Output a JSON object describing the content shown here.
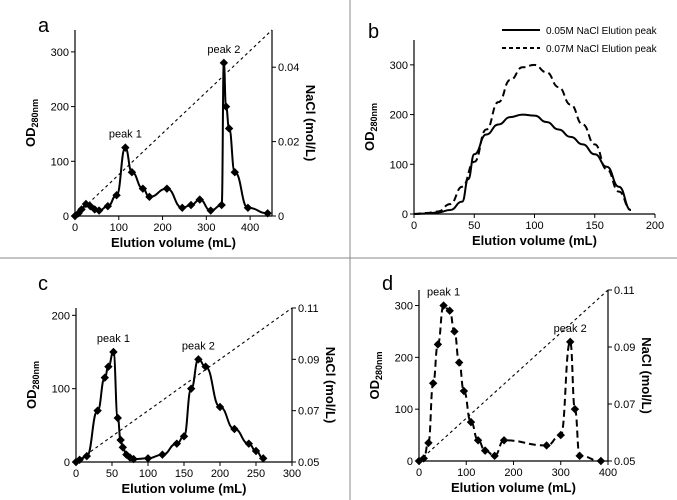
{
  "chart_data": [
    {
      "panel": "a",
      "type": "line",
      "xlabel": "Elution volume (mL)",
      "ylabel": {
        "main": "OD",
        "sub": "280nm"
      },
      "y2label": "NaCl (mol/L)",
      "xlim": [
        0,
        450
      ],
      "ylim": [
        0,
        340
      ],
      "y2lim": [
        0,
        0.05
      ],
      "xticks": [
        "0",
        "100",
        "200",
        "300",
        "400"
      ],
      "yticks": [
        "0",
        "100",
        "200",
        "300"
      ],
      "y2ticks": [
        "0",
        "0.02",
        "0.04"
      ],
      "series": [
        {
          "style": "solid-markers",
          "x": [
            0,
            8,
            15,
            25,
            35,
            45,
            55,
            75,
            95,
            115,
            130,
            155,
            170,
            210,
            245,
            265,
            285,
            310,
            335,
            340,
            345,
            352,
            365,
            395,
            440
          ],
          "y": [
            0,
            5,
            12,
            22,
            18,
            12,
            10,
            18,
            38,
            125,
            80,
            50,
            35,
            50,
            15,
            20,
            30,
            10,
            20,
            280,
            200,
            160,
            80,
            15,
            5
          ]
        },
        {
          "style": "dashed",
          "axis": "y2",
          "x": [
            0,
            450
          ],
          "y": [
            0,
            0.05
          ]
        }
      ],
      "annotations": [
        {
          "text": "peak 1",
          "x": 115,
          "y": 125
        },
        {
          "text": "peak 2",
          "x": 340,
          "y": 280
        }
      ]
    },
    {
      "panel": "b",
      "type": "line",
      "xlabel": "Elution volume (mL)",
      "ylabel": {
        "main": "OD",
        "sub": "280nm"
      },
      "xlim": [
        0,
        200
      ],
      "ylim": [
        0,
        350
      ],
      "xticks": [
        "0",
        "50",
        "100",
        "150",
        "200"
      ],
      "yticks": [
        "0",
        "100",
        "200",
        "300"
      ],
      "series": [
        {
          "name": "0.05M NaCl Elution peak",
          "style": "solid",
          "x": [
            0,
            10,
            20,
            30,
            40,
            45,
            50,
            60,
            70,
            80,
            90,
            100,
            110,
            120,
            130,
            140,
            150,
            160,
            170,
            180
          ],
          "y": [
            0,
            1,
            3,
            8,
            25,
            70,
            120,
            160,
            180,
            195,
            200,
            198,
            185,
            170,
            155,
            140,
            120,
            95,
            55,
            8
          ]
        },
        {
          "name": "0.07M NaCl Elution peak",
          "style": "dashed",
          "x": [
            0,
            10,
            20,
            30,
            40,
            50,
            60,
            70,
            80,
            90,
            100,
            110,
            120,
            130,
            140,
            150,
            160,
            170,
            180
          ],
          "y": [
            0,
            2,
            5,
            20,
            55,
            105,
            170,
            225,
            270,
            295,
            300,
            285,
            255,
            220,
            180,
            140,
            90,
            45,
            8
          ]
        }
      ]
    },
    {
      "panel": "c",
      "type": "line",
      "xlabel": "Elution volume (mL)",
      "ylabel": {
        "main": "OD",
        "sub": "280nm"
      },
      "y2label": "NaCl (mol/L)",
      "xlim": [
        0,
        300
      ],
      "ylim": [
        0,
        210
      ],
      "y2lim": [
        0.05,
        0.11
      ],
      "xticks": [
        "0",
        "50",
        "100",
        "150",
        "200",
        "250",
        "300"
      ],
      "yticks": [
        "0",
        "100",
        "200"
      ],
      "y2ticks": [
        "0.05",
        "0.07",
        "0.09",
        "0.11"
      ],
      "series": [
        {
          "style": "solid-markers",
          "x": [
            0,
            5,
            15,
            30,
            40,
            45,
            52,
            58,
            62,
            65,
            70,
            75,
            80,
            100,
            120,
            140,
            150,
            160,
            170,
            180,
            200,
            220,
            240,
            250,
            260
          ],
          "y": [
            0,
            3,
            8,
            70,
            115,
            130,
            150,
            60,
            30,
            20,
            10,
            6,
            4,
            5,
            10,
            25,
            35,
            100,
            140,
            130,
            75,
            45,
            25,
            15,
            5
          ]
        },
        {
          "style": "dashed",
          "axis": "y2",
          "x": [
            0,
            300
          ],
          "y": [
            0.05,
            0.11
          ]
        }
      ],
      "annotations": [
        {
          "text": "peak 1",
          "x": 52,
          "y": 150
        },
        {
          "text": "peak 2",
          "x": 170,
          "y": 140
        }
      ]
    },
    {
      "panel": "d",
      "type": "line",
      "xlabel": "Elution volume (mL)",
      "ylabel": {
        "main": "OD",
        "sub": "280nm"
      },
      "y2label": "NaCl (mol/L)",
      "xlim": [
        0,
        400
      ],
      "ylim": [
        0,
        330
      ],
      "y2lim": [
        0.05,
        0.11
      ],
      "xticks": [
        "0",
        "100",
        "200",
        "300",
        "400"
      ],
      "yticks": [
        "0",
        "100",
        "200",
        "300"
      ],
      "y2ticks": [
        "0.05",
        "0.07",
        "0.09",
        "0.11"
      ],
      "series": [
        {
          "style": "dashed-markers",
          "x": [
            0,
            10,
            20,
            30,
            40,
            52,
            65,
            75,
            85,
            95,
            110,
            125,
            140,
            160,
            180,
            270,
            300,
            320,
            330,
            340,
            385
          ],
          "y": [
            0,
            5,
            35,
            150,
            225,
            300,
            290,
            250,
            190,
            135,
            75,
            40,
            20,
            10,
            40,
            30,
            50,
            230,
            100,
            10,
            0
          ]
        },
        {
          "style": "dashed",
          "axis": "y2",
          "x": [
            0,
            400
          ],
          "y": [
            0.05,
            0.11
          ]
        }
      ],
      "annotations": [
        {
          "text": "peak 1",
          "x": 52,
          "y": 300
        },
        {
          "text": "peak 2",
          "x": 320,
          "y": 230
        }
      ]
    }
  ]
}
